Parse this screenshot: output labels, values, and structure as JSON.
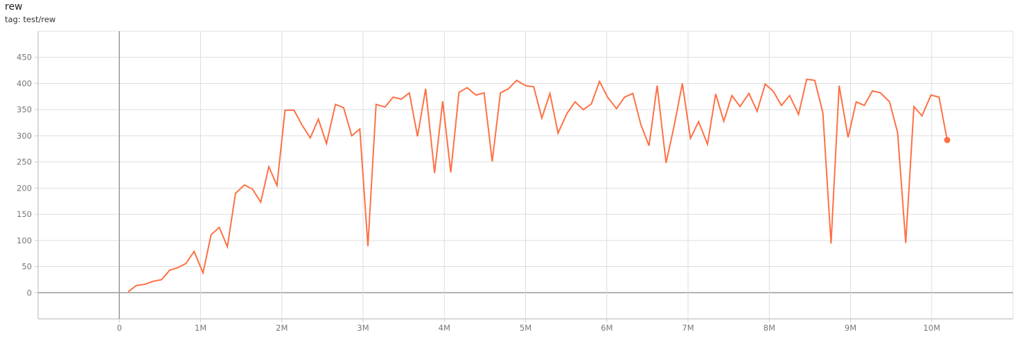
{
  "header": {
    "title": "rew",
    "tag": "tag: test/rew"
  },
  "chart_data": {
    "type": "line",
    "title": "rew",
    "subtitle": "tag: test/rew",
    "xlabel": "",
    "ylabel": "",
    "xlim": [
      -1,
      11
    ],
    "ylim": [
      -50,
      500
    ],
    "grid": true,
    "x_ticks": [
      0,
      1,
      2,
      3,
      4,
      5,
      6,
      7,
      8,
      9,
      10
    ],
    "x_tick_labels": [
      "0",
      "1M",
      "2M",
      "3M",
      "4M",
      "5M",
      "6M",
      "7M",
      "8M",
      "9M",
      "10M"
    ],
    "y_ticks": [
      0,
      50,
      100,
      150,
      200,
      250,
      300,
      350,
      400,
      450
    ],
    "y_tick_labels": [
      "0",
      "50",
      "100",
      "150",
      "200",
      "250",
      "300",
      "350",
      "400",
      "450"
    ],
    "series": [
      {
        "color": "#ff7043",
        "x": [
          0.11,
          0.21,
          0.31,
          0.42,
          0.52,
          0.62,
          0.72,
          0.82,
          0.92,
          1.03,
          1.13,
          1.23,
          1.33,
          1.43,
          1.54,
          1.64,
          1.74,
          1.84,
          1.94,
          2.04,
          2.15,
          2.25,
          2.35,
          2.45,
          2.55,
          2.66,
          2.76,
          2.86,
          2.96,
          3.06,
          3.16,
          3.27,
          3.37,
          3.47,
          3.57,
          3.67,
          3.77,
          3.88,
          3.98,
          4.08,
          4.18,
          4.28,
          4.39,
          4.49,
          4.59,
          4.69,
          4.79,
          4.89,
          5.0,
          5.1,
          5.2,
          5.3,
          5.4,
          5.51,
          5.61,
          5.71,
          5.81,
          5.91,
          6.01,
          6.12,
          6.22,
          6.32,
          6.42,
          6.52,
          6.62,
          6.73,
          6.83,
          6.93,
          7.03,
          7.13,
          7.24,
          7.34,
          7.44,
          7.54,
          7.64,
          7.75,
          7.85,
          7.95,
          8.05,
          8.15,
          8.25,
          8.36,
          8.46,
          8.56,
          8.66,
          8.76,
          8.86,
          8.97,
          9.07,
          9.17,
          9.27,
          9.37,
          9.48,
          9.58,
          9.68,
          9.78,
          9.88,
          9.99,
          10.09,
          10.19
        ],
        "y": [
          2,
          14,
          16,
          22,
          25,
          43,
          48,
          56,
          79,
          38,
          111,
          125,
          88,
          190,
          206,
          198,
          173,
          241,
          205,
          349,
          349,
          320,
          296,
          332,
          285,
          360,
          354,
          300,
          313,
          89,
          360,
          355,
          374,
          370,
          382,
          299,
          390,
          229,
          366,
          230,
          383,
          392,
          378,
          382,
          251,
          382,
          390,
          406,
          396,
          394,
          334,
          381,
          305,
          343,
          365,
          350,
          361,
          404,
          374,
          352,
          374,
          381,
          321,
          281,
          396,
          248,
          320,
          400,
          295,
          327,
          284,
          380,
          328,
          377,
          356,
          381,
          347,
          399,
          385,
          358,
          377,
          341,
          408,
          406,
          344,
          94,
          396,
          297,
          365,
          358,
          386,
          382,
          365,
          306,
          95,
          356,
          338,
          378,
          374,
          292
        ]
      }
    ]
  }
}
